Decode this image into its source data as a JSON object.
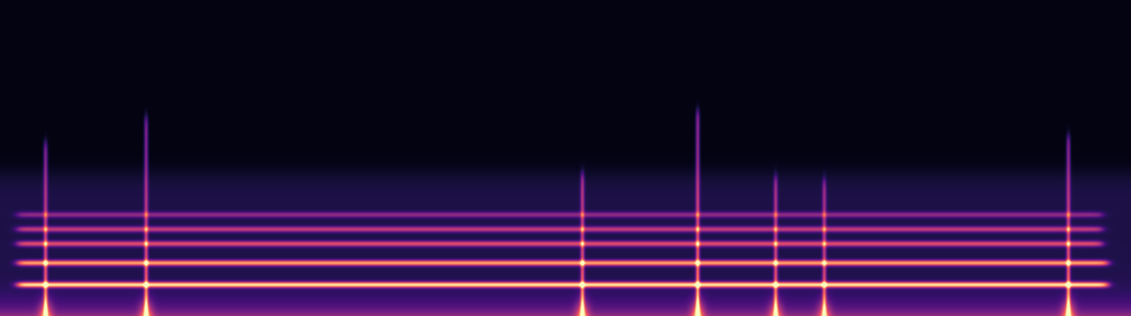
{
  "chart_data": {
    "type": "spectrogram",
    "tick_labels": false,
    "xlim": [
      0,
      100
    ],
    "ylim": [
      0,
      100
    ],
    "noise_floor": 45,
    "harmonics": {
      "frequency": [
        9.8,
        16.7,
        22.8,
        27.4,
        32.0
      ],
      "intensity": [
        1.0,
        0.85,
        0.6,
        0.5,
        0.35
      ],
      "start": [
        1.5,
        1.5,
        1.5,
        1.5,
        1.5
      ],
      "end": [
        98.0,
        98.0,
        97.5,
        97.5,
        97.5
      ]
    },
    "clicks": {
      "time": [
        4.0,
        12.9,
        51.5,
        61.7,
        68.6,
        72.9,
        94.5
      ],
      "top": [
        55,
        63,
        45,
        65,
        44,
        43,
        57
      ],
      "intensity": [
        0.8,
        0.8,
        0.8,
        0.9,
        0.75,
        0.7,
        0.85
      ]
    }
  }
}
